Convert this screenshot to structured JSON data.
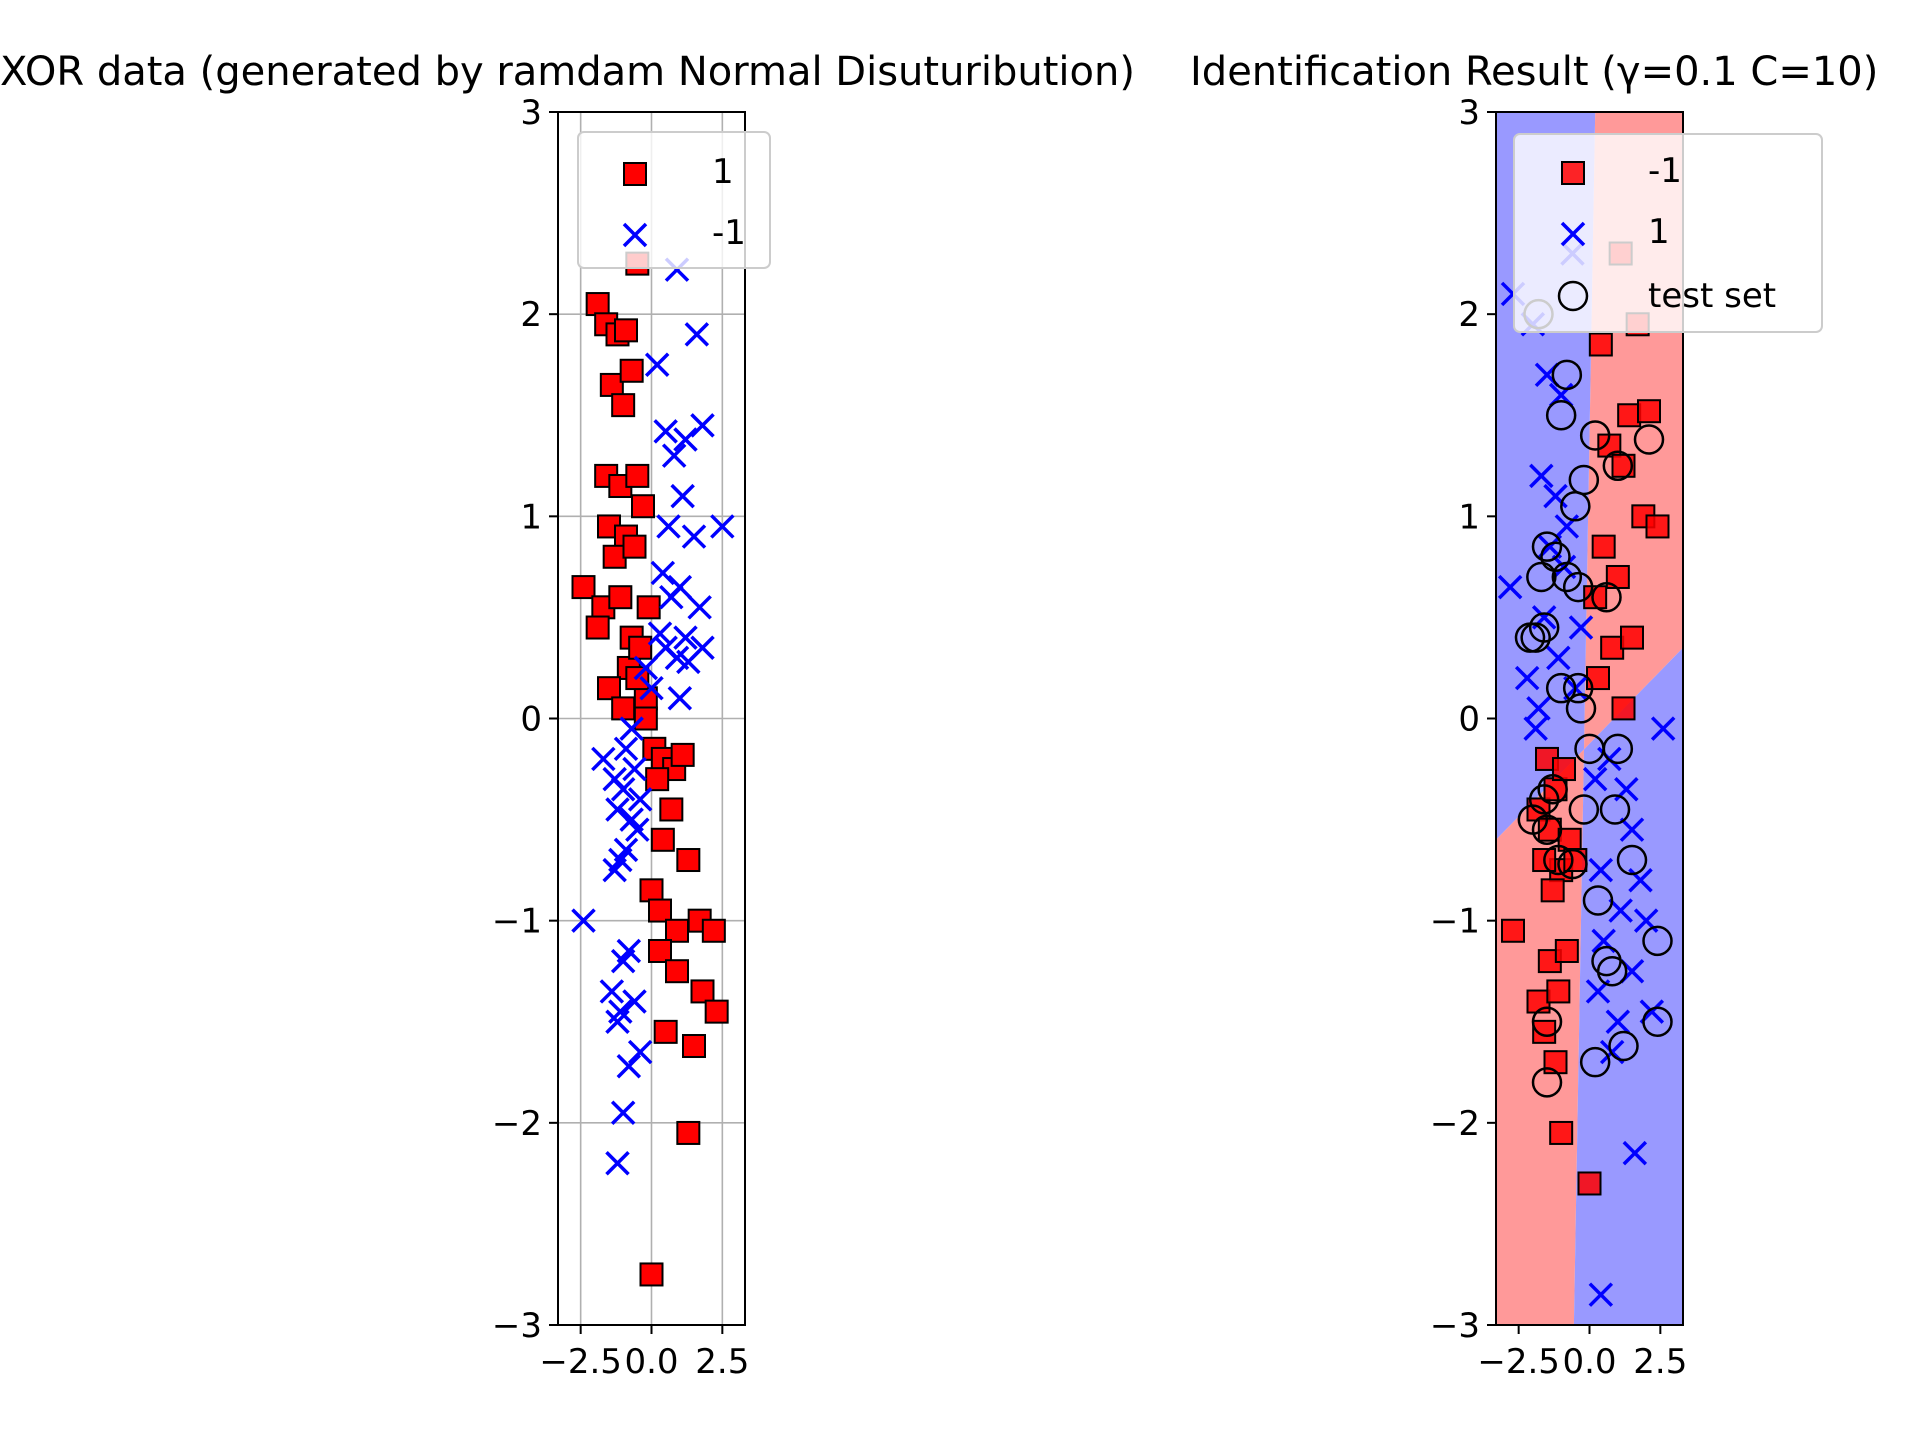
{
  "chart_data": [
    {
      "type": "scatter",
      "title": "XOR data (generated by ramdam Normal Disuturibution)",
      "xlabel": "",
      "ylabel": "",
      "xlim": [
        -3.3,
        3.3
      ],
      "ylim": [
        -3,
        3
      ],
      "x_ticks": [
        -2.5,
        0.0,
        2.5
      ],
      "x_tick_labels": [
        "−2.5",
        "0.0",
        "2.5"
      ],
      "y_ticks": [
        -3,
        -2,
        -1,
        0,
        1,
        2,
        3
      ],
      "y_tick_labels": [
        "−3",
        "−2",
        "−1",
        "0",
        "1",
        "2",
        "3"
      ],
      "grid": true,
      "legend_position": "upper-right",
      "series": [
        {
          "name": "1",
          "marker": "square",
          "color": "#ff0000",
          "x": [
            -1.9,
            -1.6,
            -1.2,
            -0.9,
            -0.5,
            -1.4,
            -1.0,
            -0.7,
            -1.6,
            -1.1,
            -0.5,
            -1.5,
            -0.9,
            -0.3,
            -1.3,
            -0.6,
            -2.4,
            -1.7,
            -1.1,
            -1.9,
            -0.7,
            -0.1,
            -0.8,
            -0.4,
            -1.5,
            -0.2,
            -1.0,
            -0.5,
            -0.2,
            0.1,
            0.4,
            0.8,
            1.1,
            0.2,
            0.7,
            0.4,
            1.3,
            0.0,
            0.3,
            0.9,
            1.7,
            0.3,
            0.9,
            2.2,
            1.8,
            2.3,
            0.5,
            1.5,
            1.3,
            0.0
          ],
          "y": [
            2.05,
            1.95,
            1.9,
            1.92,
            2.25,
            1.65,
            1.55,
            1.72,
            1.2,
            1.15,
            1.2,
            0.95,
            0.9,
            1.05,
            0.8,
            0.85,
            0.65,
            0.55,
            0.6,
            0.45,
            0.4,
            0.55,
            0.25,
            0.35,
            0.15,
            0.1,
            0.05,
            0.2,
            0.0,
            -0.15,
            -0.2,
            -0.25,
            -0.18,
            -0.3,
            -0.45,
            -0.6,
            -0.7,
            -0.85,
            -0.95,
            -1.05,
            -1.0,
            -1.15,
            -1.25,
            -1.05,
            -1.35,
            -1.45,
            -1.55,
            -1.62,
            -2.05,
            -2.75
          ]
        },
        {
          "name": "-1",
          "marker": "x",
          "color": "#0000ff",
          "x": [
            0.9,
            1.6,
            1.8,
            1.2,
            0.5,
            0.8,
            1.1,
            0.6,
            1.5,
            2.5,
            0.4,
            1.0,
            0.7,
            1.7,
            0.3,
            1.2,
            0.5,
            0.9,
            1.8,
            1.3,
            -0.2,
            0.0,
            -1.7,
            -1.3,
            -0.9,
            -0.6,
            -1.0,
            -0.4,
            -1.2,
            -0.7,
            -0.9,
            -1.1,
            -0.5,
            -1.3,
            -2.4,
            -0.8,
            -1.0,
            -1.4,
            -1.1,
            -0.6,
            -1.2,
            -0.4,
            -0.8,
            -1.0,
            -1.2,
            -0.7,
            0.2,
            1.0
          ],
          "y": [
            2.22,
            1.9,
            1.45,
            1.38,
            1.42,
            1.3,
            1.1,
            0.95,
            0.9,
            0.95,
            0.72,
            0.65,
            0.6,
            0.55,
            0.42,
            0.4,
            0.35,
            0.3,
            0.35,
            0.28,
            0.25,
            0.15,
            -0.2,
            -0.3,
            -0.15,
            -0.25,
            -0.35,
            -0.4,
            -0.45,
            -0.5,
            -0.65,
            -0.7,
            -0.55,
            -0.75,
            -1.0,
            -1.15,
            -1.2,
            -1.35,
            -1.45,
            -1.4,
            -1.5,
            -1.65,
            -1.72,
            -1.95,
            -2.2,
            -0.05,
            1.75,
            0.1
          ]
        }
      ]
    },
    {
      "type": "scatter",
      "title": "Identification Result (γ=0.1 C=10)",
      "xlabel": "",
      "ylabel": "",
      "xlim": [
        -3.3,
        3.3
      ],
      "ylim": [
        -3,
        3
      ],
      "x_ticks": [
        -2.5,
        0.0,
        2.5
      ],
      "x_tick_labels": [
        "−2.5",
        "0.0",
        "2.5"
      ],
      "y_ticks": [
        -3,
        -2,
        -1,
        0,
        1,
        2,
        3
      ],
      "y_tick_labels": [
        "−3",
        "−2",
        "−1",
        "0",
        "1",
        "2",
        "3"
      ],
      "grid": false,
      "legend_position": "upper-right",
      "decision_regions": {
        "red_color": "#ff9999",
        "blue_color": "#9999ff",
        "vertical_boundary": {
          "top_x": 0.2,
          "bottom_x": -0.55
        },
        "tilted_boundary": {
          "left_y": -0.6,
          "right_y": 0.35
        }
      },
      "series": [
        {
          "name": "-1",
          "marker": "square",
          "color": "#ff0000",
          "x": [
            1.1,
            1.7,
            0.4,
            1.4,
            2.1,
            0.7,
            1.2,
            1.9,
            0.5,
            2.4,
            1.0,
            0.2,
            0.8,
            1.5,
            0.3,
            1.2,
            -1.5,
            -1.8,
            -1.2,
            -0.9,
            -1.4,
            -0.7,
            -1.0,
            -1.6,
            -1.3,
            -0.5,
            -2.7,
            -1.8,
            -1.4,
            -1.1,
            -0.8,
            -1.6,
            -1.2,
            -1.0,
            0.0
          ],
          "y": [
            2.3,
            1.95,
            1.85,
            1.5,
            1.52,
            1.35,
            1.25,
            1.0,
            0.85,
            0.95,
            0.7,
            0.6,
            0.35,
            0.4,
            0.2,
            0.05,
            -0.2,
            -0.45,
            -0.35,
            -0.25,
            -0.55,
            -0.6,
            -0.75,
            -0.7,
            -0.85,
            -0.7,
            -1.05,
            -1.4,
            -1.2,
            -1.35,
            -1.15,
            -1.55,
            -1.7,
            -2.05,
            -2.3
          ]
        },
        {
          "name": "1",
          "marker": "x",
          "color": "#0000ff",
          "x": [
            -2.7,
            -2.0,
            -1.5,
            -1.0,
            -1.7,
            -1.2,
            -0.8,
            -1.4,
            -0.9,
            -2.8,
            -1.6,
            -2.2,
            -1.1,
            -1.8,
            -0.5,
            -0.3,
            -1.9,
            0.7,
            1.3,
            0.2,
            1.5,
            2.6,
            0.4,
            1.8,
            1.1,
            0.5,
            2.0,
            1.5,
            0.3,
            1.0,
            2.2,
            0.8,
            1.6,
            -0.6,
            0.4
          ],
          "y": [
            2.1,
            1.95,
            1.7,
            1.6,
            1.2,
            1.1,
            0.95,
            0.85,
            0.75,
            0.65,
            0.5,
            0.2,
            0.3,
            0.05,
            0.15,
            0.45,
            -0.05,
            -0.2,
            -0.35,
            -0.3,
            -0.55,
            -0.05,
            -0.75,
            -0.8,
            -0.95,
            -1.1,
            -1.0,
            -1.25,
            -1.35,
            -1.5,
            -1.45,
            -1.65,
            -2.15,
            2.3,
            -2.85
          ]
        },
        {
          "name": "test set",
          "marker": "circle",
          "color": "#000000",
          "x": [
            -1.8,
            -0.8,
            -1.0,
            0.2,
            -0.2,
            2.1,
            1.0,
            -0.5,
            -1.5,
            -1.2,
            -1.7,
            -0.8,
            -0.4,
            0.6,
            -2.1,
            -1.6,
            -1.9,
            -1.0,
            -0.3,
            0.0,
            1.0,
            0.9,
            -1.3,
            -1.6,
            -2.0,
            -1.5,
            -1.1,
            -0.6,
            0.3,
            1.5,
            -0.2,
            0.6,
            2.4,
            0.8,
            1.2,
            -1.5,
            -1.5,
            0.2,
            -0.4,
            2.4
          ],
          "y": [
            2.0,
            1.7,
            1.5,
            1.4,
            1.18,
            1.38,
            1.25,
            1.05,
            0.85,
            0.8,
            0.7,
            0.7,
            0.65,
            0.6,
            0.4,
            0.45,
            0.4,
            0.15,
            0.05,
            -0.15,
            -0.15,
            -0.45,
            -0.35,
            -0.4,
            -0.5,
            -0.55,
            -0.7,
            -0.72,
            -0.9,
            -0.7,
            -0.45,
            -1.2,
            -1.1,
            -1.25,
            -1.62,
            -1.5,
            -1.8,
            -1.7,
            0.15,
            -1.5
          ]
        }
      ]
    }
  ]
}
